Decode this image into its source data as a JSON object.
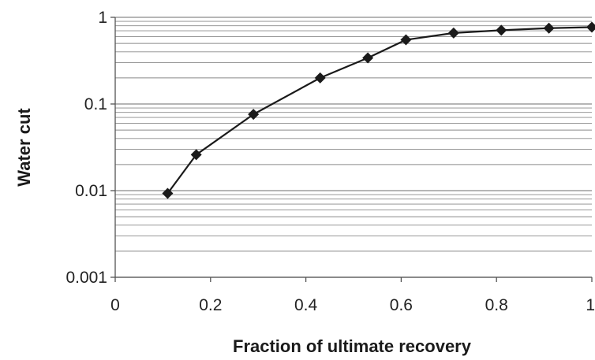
{
  "chart_data": {
    "type": "line",
    "title": "",
    "xlabel": "Fraction of ultimate recovery",
    "ylabel": "Water cut",
    "xlim": [
      0,
      1
    ],
    "ylim": [
      0.001,
      1
    ],
    "y_scale": "log",
    "x_ticks": [
      "0",
      "0.2",
      "0.4",
      "0.6",
      "0.8",
      "1"
    ],
    "y_ticks": [
      "1",
      "0.1",
      "0.01",
      "0.001"
    ],
    "grid": "horizontal minor and major gridlines",
    "marker": "diamond",
    "colors": {
      "line": "#1a1a1a",
      "grid": "#8a8a8a",
      "axis": "#555555"
    },
    "series": [
      {
        "x": [
          0.11,
          0.17,
          0.29,
          0.43,
          0.53,
          0.61,
          0.71,
          0.81,
          0.91,
          1.0
        ],
        "y": [
          0.0093,
          0.026,
          0.076,
          0.2,
          0.34,
          0.55,
          0.66,
          0.71,
          0.75,
          0.77
        ]
      }
    ]
  }
}
